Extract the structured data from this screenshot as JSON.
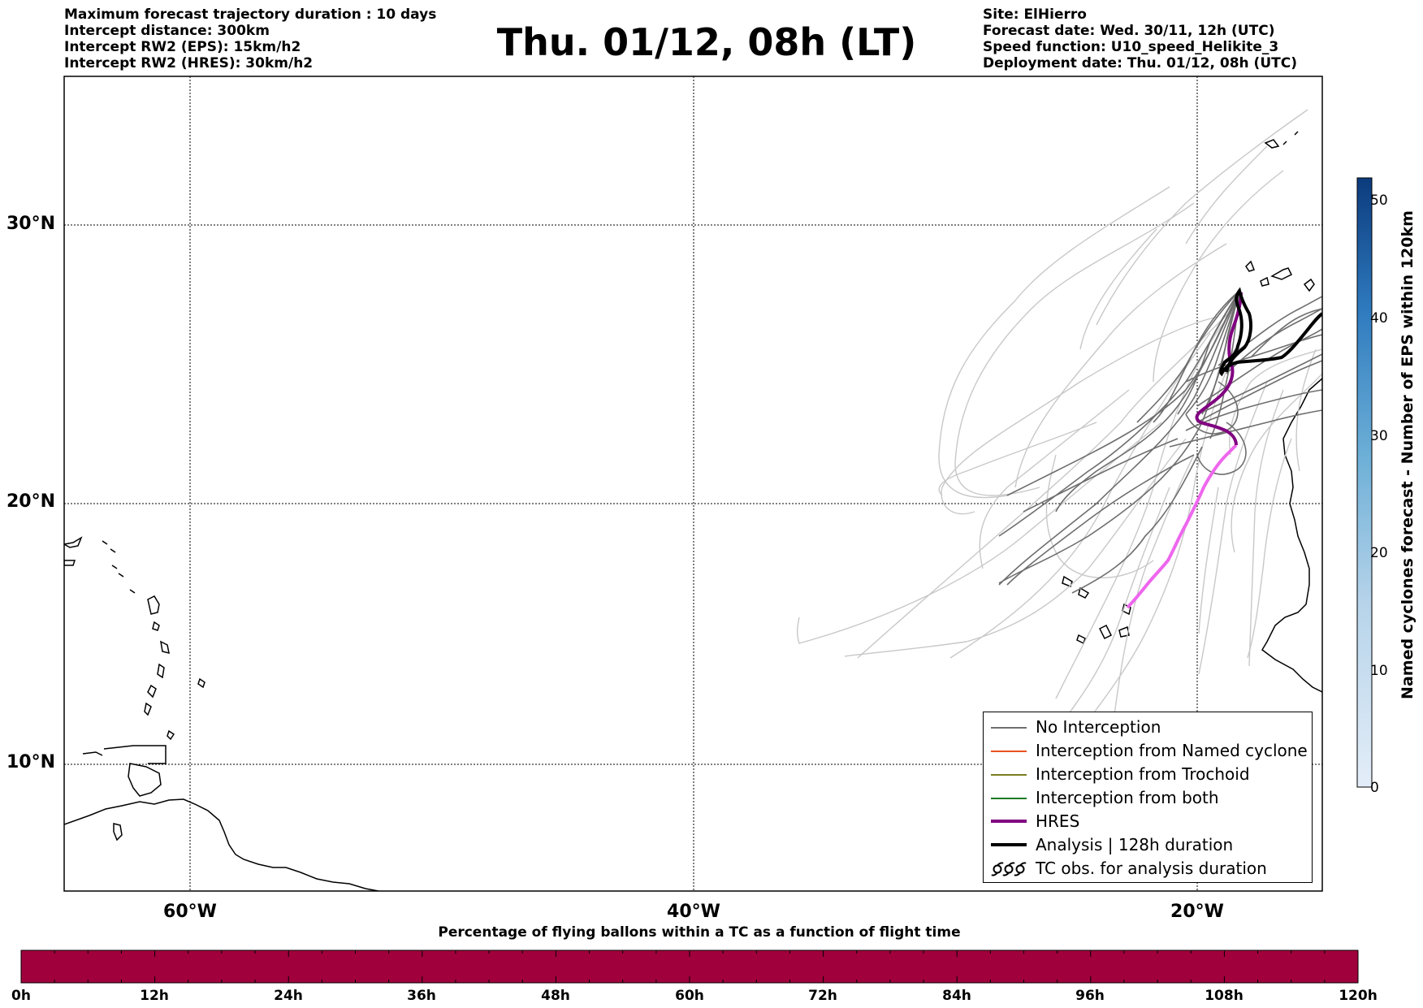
{
  "header": {
    "left_lines": [
      "Maximum forecast trajectory duration : 10 days",
      "Intercept distance: 300km",
      "Intercept RW2 (EPS):  15km/h2",
      "Intercept RW2 (HRES): 30km/h2"
    ],
    "title": "Thu. 01/12, 08h (LT)",
    "right_lines": [
      "Site: ElHierro",
      "Forecast date: Wed. 30/11, 12h (UTC)",
      "Speed function: U10_speed_Helikite_3",
      "Deployment date: Thu. 01/12, 08h (UTC)"
    ]
  },
  "map": {
    "lat_labels": [
      "30°N",
      "20°N",
      "10°N"
    ],
    "lon_labels": [
      "60°W",
      "40°W",
      "20°W"
    ],
    "extent": {
      "lon_min": -65,
      "lon_max": -15,
      "lat_min": 5.5,
      "lat_max": 35
    }
  },
  "legend": {
    "items": [
      {
        "label": "No Interception",
        "color": "#6e6e6e",
        "kind": "thin"
      },
      {
        "label": "Interception from Named cyclone",
        "color": "#e8531e",
        "kind": "thin"
      },
      {
        "label": "Interception from Trochoid",
        "color": "#7b7d1e",
        "kind": "thin"
      },
      {
        "label": "Interception from both",
        "color": "#1f7a1f",
        "kind": "thin"
      },
      {
        "label": "HRES",
        "color": "#800080",
        "kind": "thick"
      },
      {
        "label": "Analysis | 128h duration",
        "color": "#000000",
        "kind": "thick"
      },
      {
        "label": "TC obs. for analysis duration",
        "color": "#000000",
        "kind": "cyclone"
      }
    ]
  },
  "colorbar": {
    "label": "Named cyclones forecast - Number of EPS within 120km",
    "ticks": [
      "0",
      "10",
      "20",
      "30",
      "40",
      "50"
    ],
    "range": [
      0,
      52
    ],
    "color_low": "#e3edf8",
    "color_high": "#0b3b7d"
  },
  "timebar": {
    "caption": "Percentage of flying ballons within a TC as a function of flight time",
    "ticks": [
      "0h",
      "12h",
      "24h",
      "36h",
      "48h",
      "60h",
      "72h",
      "84h",
      "96h",
      "108h",
      "120h"
    ],
    "fill_color": "#a0003c"
  },
  "colors": {
    "hres": "#800080",
    "hres_light": "#ee66ee",
    "analysis": "#000000",
    "eps_dark": "#6e6e6e",
    "eps_light": "#c8c8c8"
  }
}
